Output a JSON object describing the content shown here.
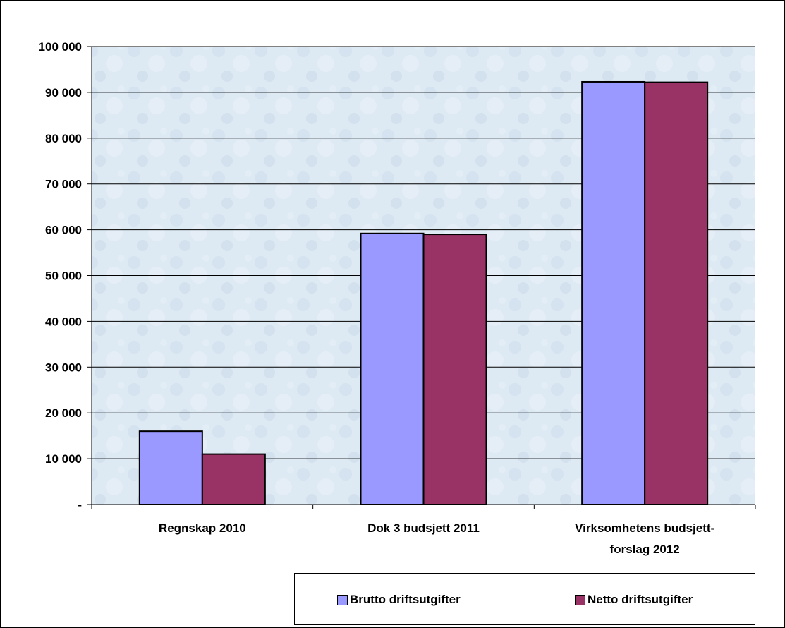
{
  "chart_data": {
    "type": "bar",
    "categories": [
      [
        "Regnskap 2010"
      ],
      [
        "Dok 3 budsjett 2011"
      ],
      [
        "Virksomhetens budsjett-",
        "forslag 2012"
      ]
    ],
    "y_ticks": [
      "-",
      "10 000",
      "20 000",
      "30 000",
      "40 000",
      "50 000",
      "60 000",
      "70 000",
      "80 000",
      "90 000",
      "100 000"
    ],
    "ylim": [
      0,
      100000
    ],
    "grid": true,
    "legend_position": "bottom-right",
    "series": [
      {
        "name": "Brutto driftsutgifter",
        "color": "#9999ff",
        "values": [
          16000,
          59200,
          92300
        ]
      },
      {
        "name": "Netto driftsutgifter",
        "color": "#993366",
        "values": [
          11000,
          59000,
          92200
        ]
      }
    ]
  }
}
